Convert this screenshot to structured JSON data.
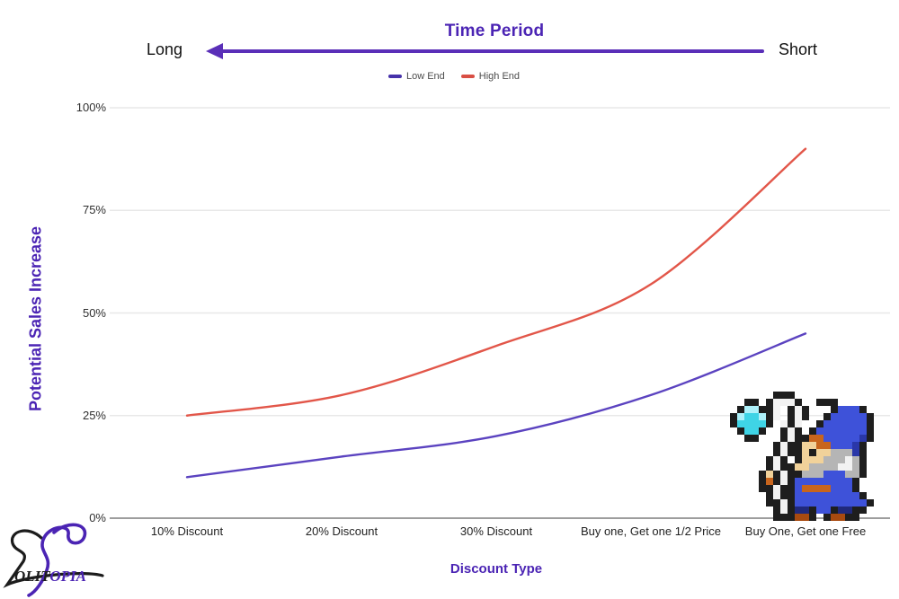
{
  "header": {
    "title": "Time Period",
    "left_label": "Long",
    "right_label": "Short"
  },
  "legend": {
    "items": [
      {
        "label": "Low End",
        "color": "#4632aa"
      },
      {
        "label": "High End",
        "color": "#d94f44"
      }
    ]
  },
  "chart_data": {
    "type": "line",
    "title": "Time Period",
    "xlabel": "Discount Type",
    "ylabel": "Potential Sales Increase",
    "categories": [
      "10% Discount",
      "20% Discount",
      "30% Discount",
      "Buy one, Get one 1/2 Price",
      "Buy One, Get one Free"
    ],
    "series": [
      {
        "name": "Low End",
        "color": "#5b43c0",
        "values": [
          10,
          15,
          20,
          30,
          45
        ]
      },
      {
        "name": "High End",
        "color": "#e25649",
        "values": [
          25,
          30,
          42,
          57,
          90
        ]
      }
    ],
    "ylim": [
      0,
      100
    ],
    "ytick_labels": [
      "0%",
      "25%",
      "50%",
      "75%",
      "100%"
    ],
    "grid": true,
    "legend_position": "top",
    "secondary_axis": {
      "label": "Time Period",
      "left": "Long",
      "right": "Short",
      "direction": "arrow-pointing-left"
    }
  },
  "colors": {
    "accent_purple": "#4b24b4",
    "arrow_purple": "#5a2fb8",
    "gridline": "#e8e8e8",
    "axis_line": "#8f8f8f",
    "tick_text": "#2f2f2f"
  },
  "branding": {
    "logo_text": "OLITOPIA",
    "logo_prefix": "OLIT",
    "logo_suffix": "OPIA"
  },
  "decor": {
    "wizard": "pixel-art wizard in blue hat and robe holding a staff with a cyan crystal"
  }
}
